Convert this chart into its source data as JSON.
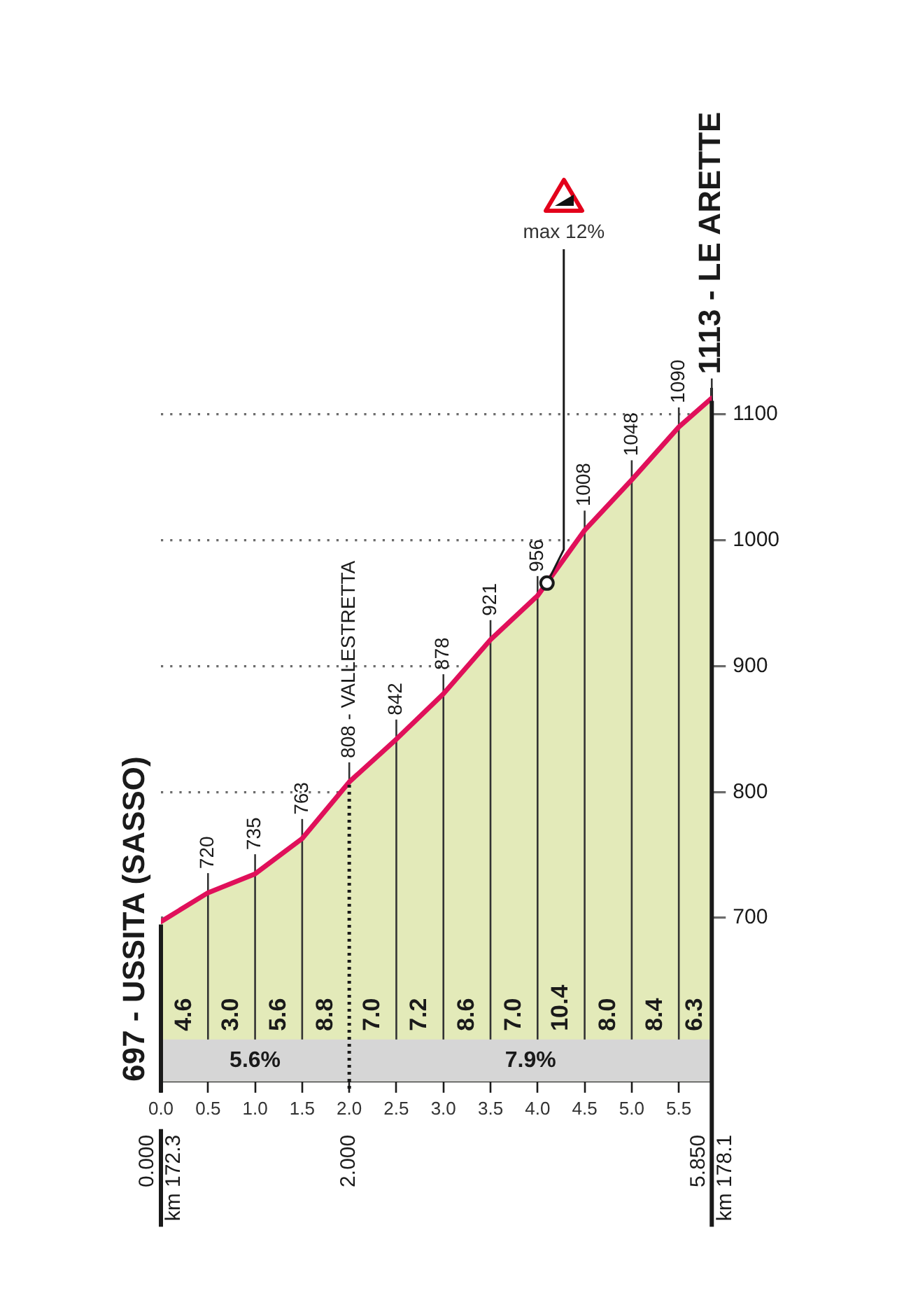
{
  "chart_data": {
    "type": "area",
    "x": [
      0,
      0.5,
      1,
      1.5,
      2,
      2.5,
      3,
      3.5,
      4,
      4.5,
      5,
      5.5,
      5.85
    ],
    "series": [
      {
        "color": "#e3eab9",
        "values": [
          697,
          720,
          735,
          763,
          808,
          842,
          878,
          921,
          956,
          1008,
          1048,
          1090,
          1113
        ],
        "value_labels": [
          "697 - USSITA (SASSO)",
          "720",
          "735",
          "763",
          "808 - VALLESTRETTA",
          "842",
          "878",
          "921",
          "956",
          "1008",
          "1048",
          "1090",
          "1113 - LE ARETTE"
        ]
      },
      {
        "type": "line",
        "color": "#e0105a",
        "values": [
          697,
          720,
          735,
          763,
          808,
          842,
          878,
          921,
          956,
          1008,
          1048,
          1090,
          1113
        ]
      }
    ],
    "xlim": [
      0,
      5.85
    ],
    "xticks": [
      {
        "value": 0,
        "label": "0.0"
      },
      0.5,
      {
        "value": 1,
        "label": "1.0"
      },
      1.5,
      {
        "value": 2,
        "label": "2.0"
      },
      2.5,
      {
        "value": 3,
        "label": "3.0"
      },
      3.5,
      {
        "value": 4,
        "label": "4.0"
      },
      4.5,
      {
        "value": 5,
        "label": "5.0"
      },
      5.5
    ],
    "ylim": [
      570,
      1120
    ],
    "yticks": [
      700,
      800,
      900,
      1000,
      1100
    ],
    "grid": true,
    "ref_lines": [
      {
        "axis": "x",
        "value": 0,
        "label": "0.000\nkm 172.3"
      },
      {
        "axis": "x",
        "value": 2,
        "label": "2.000",
        "line_style": "dotted"
      },
      {
        "axis": "x",
        "value": 5.85,
        "label": "5.850\nkm 178.1"
      }
    ],
    "bands": [
      {
        "axis": "x",
        "from": 0,
        "to": 2,
        "label": "5.6%",
        "color": "#d6d6d6"
      },
      {
        "axis": "x",
        "from": 2,
        "to": 5.85,
        "label": "7.9%",
        "color": "#d6d6d6"
      }
    ],
    "annotations": [
      "4.6",
      "3.0",
      "5.6",
      "8.8",
      "7.0",
      "7.2",
      "8.6",
      "7.0",
      "10.4",
      "8.0",
      "8.4",
      "6.3",
      {
        "text": "max 12%",
        "x": 4.1,
        "y": 966
      }
    ]
  }
}
